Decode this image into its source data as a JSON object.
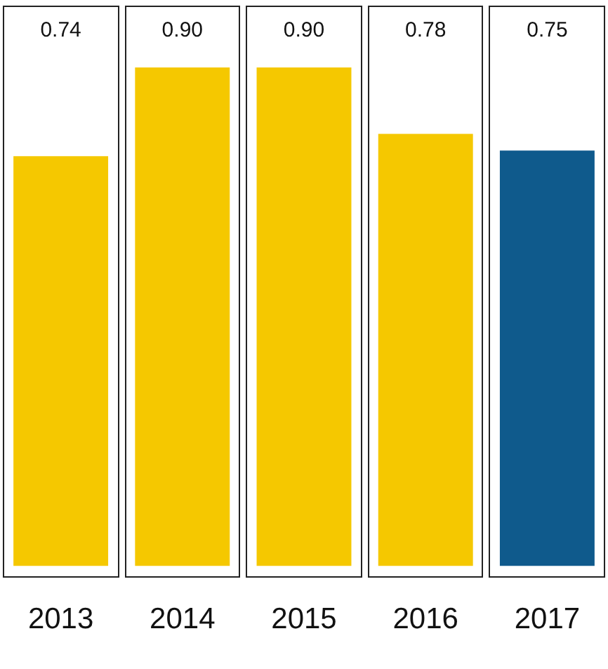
{
  "chart_data": {
    "type": "bar",
    "categories": [
      "2013",
      "2014",
      "2015",
      "2016",
      "2017"
    ],
    "values": [
      0.74,
      0.9,
      0.9,
      0.78,
      0.75
    ],
    "colors": [
      "#f5c800",
      "#f5c800",
      "#f5c800",
      "#f5c800",
      "#0f5a8c"
    ],
    "value_labels": [
      "0.74",
      "0.90",
      "0.90",
      "0.78",
      "0.75"
    ],
    "grid": false,
    "legend": false
  }
}
